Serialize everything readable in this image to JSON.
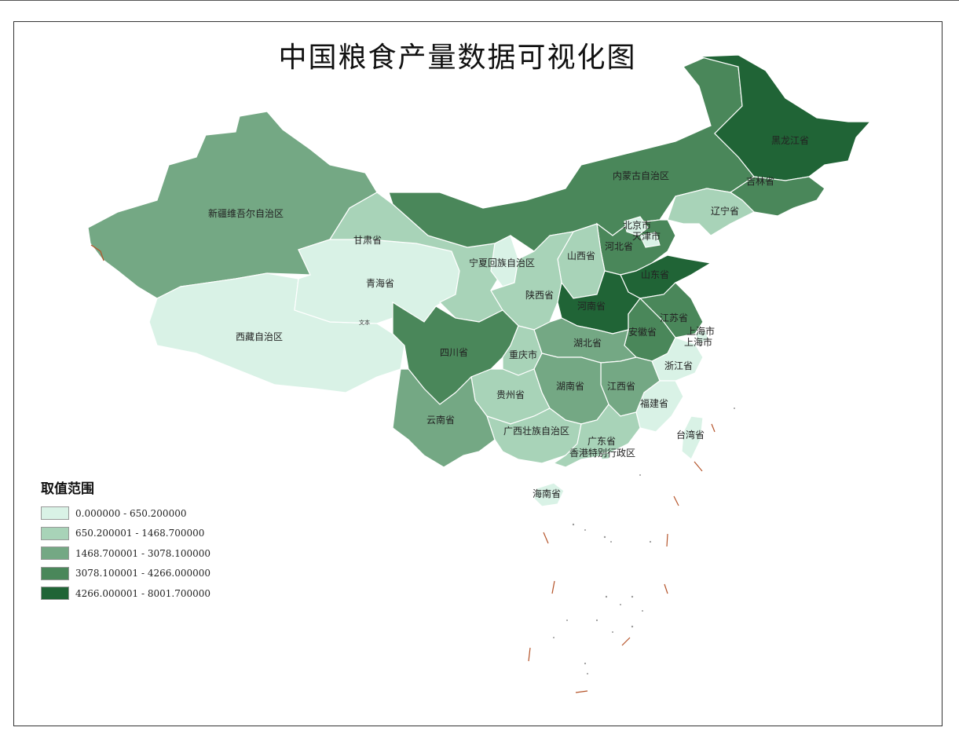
{
  "title": "中国粮食产量数据可视化图",
  "legend": {
    "title": "取值范围",
    "classes": [
      {
        "label": "0.000000 - 650.200000",
        "color": "#d9f2e6"
      },
      {
        "label": "650.200001 - 1468.700000",
        "color": "#a8d3b8"
      },
      {
        "label": "1468.700001 - 3078.100000",
        "color": "#74a884"
      },
      {
        "label": "3078.100001 - 4266.000000",
        "color": "#4a875a"
      },
      {
        "label": "4266.000001 - 8001.700000",
        "color": "#206436"
      }
    ]
  },
  "provinces": {
    "heilongjiang": "黑龙江省",
    "jilin": "吉林省",
    "liaoning": "辽宁省",
    "neimenggu": "内蒙古自治区",
    "beijing": "北京市",
    "tianjin": "天津市",
    "hebei": "河北省",
    "shandong": "山东省",
    "shanxi": "山西省",
    "ningxia": "宁夏回族自治区",
    "gansu": "甘肃省",
    "xinjiang": "新疆维吾尔自治区",
    "qinghai": "青海省",
    "xizang": "西藏自治区",
    "shaanxi": "陕西省",
    "henan": "河南省",
    "jiangsu": "江苏省",
    "shanghai": "上海市",
    "anhui": "安徽省",
    "hubei": "湖北省",
    "sichuan": "四川省",
    "chongqing": "重庆市",
    "zhejiang": "浙江省",
    "hunan": "湖南省",
    "jiangxi": "江西省",
    "guizhou": "贵州省",
    "fujian": "福建省",
    "yunnan": "云南省",
    "guangxi": "广西壮族自治区",
    "guangdong": "广东省",
    "hongkong": "香港特别行政区",
    "taiwan": "台湾省",
    "hainan": "海南省"
  },
  "small_text": "文本"
}
